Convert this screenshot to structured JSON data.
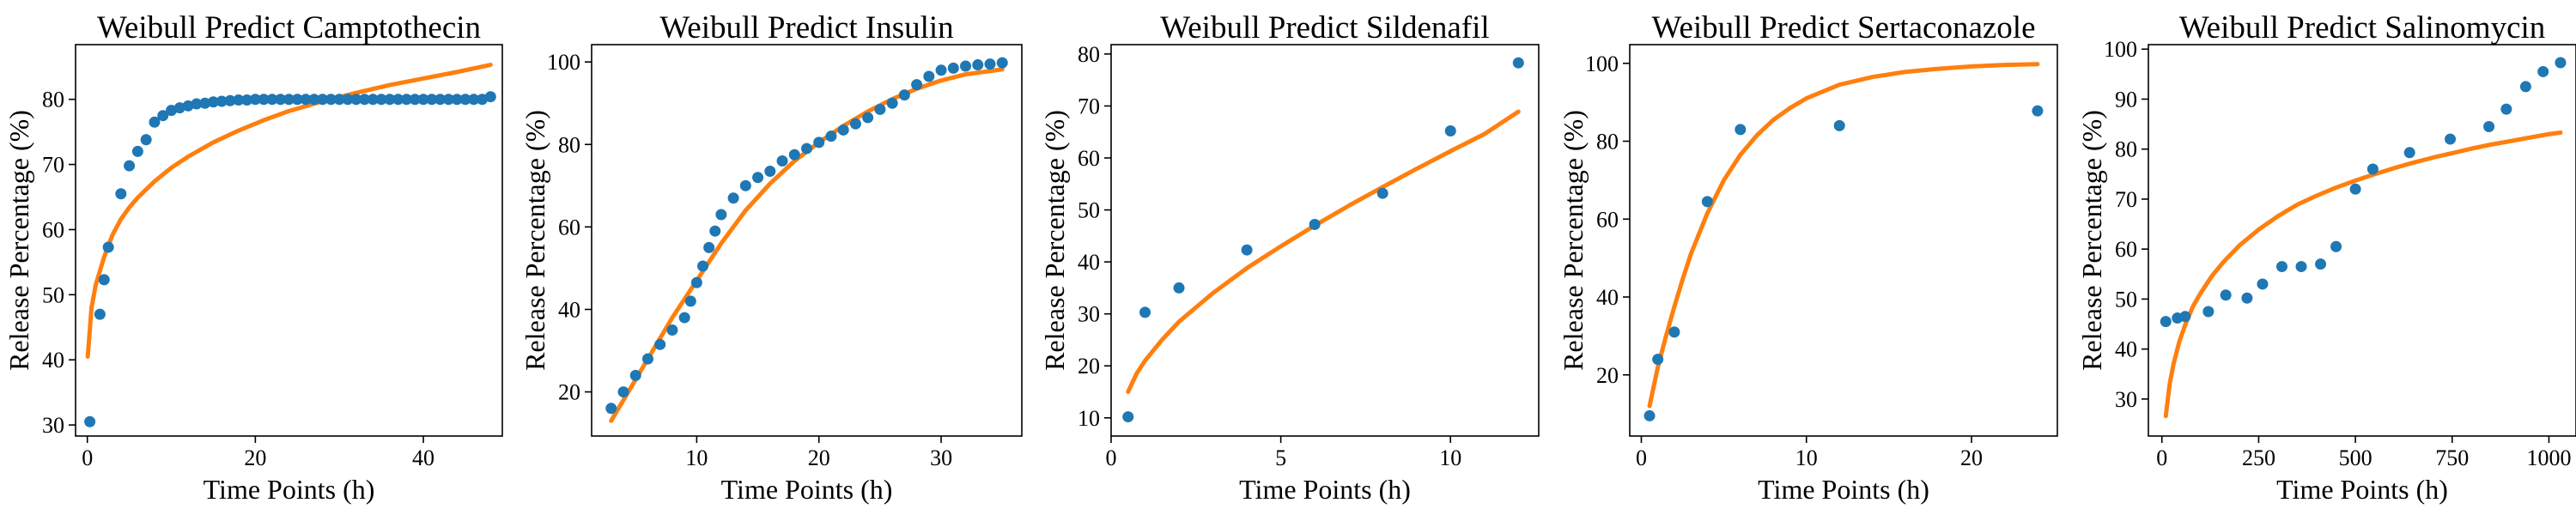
{
  "colors": {
    "points": "#1f77b4",
    "fit": "#ff7f0e",
    "axes": "#000000"
  },
  "chart_data": [
    {
      "type": "scatter",
      "title": "Weibull Predict Camptothecin",
      "xlabel": "Time Points (h)",
      "ylabel": "Release Percentage (%)",
      "xlim": [
        -1.4,
        49.4
      ],
      "ylim": [
        28.3,
        88.4
      ],
      "xticks": [
        0,
        20,
        40
      ],
      "yticks": [
        30,
        40,
        50,
        60,
        70,
        80
      ],
      "grid": false,
      "legend": "none",
      "series": [
        {
          "kind": "points",
          "x": [
            0.3,
            1.5,
            2,
            2.5,
            4,
            5,
            6,
            7,
            8,
            9,
            10,
            11,
            12,
            13,
            14,
            15,
            16,
            17,
            18,
            19,
            20,
            21,
            22,
            23,
            24,
            25,
            26,
            27,
            28,
            29,
            30,
            31,
            32,
            33,
            34,
            35,
            36,
            37,
            38,
            39,
            40,
            41,
            42,
            43,
            44,
            45,
            46,
            47,
            48
          ],
          "y": [
            30.5,
            47,
            52.3,
            57.3,
            65.5,
            69.8,
            72,
            73.8,
            76.5,
            77.5,
            78.3,
            78.7,
            79,
            79.3,
            79.4,
            79.6,
            79.7,
            79.8,
            79.9,
            79.9,
            80,
            80,
            80,
            80,
            80,
            80,
            80,
            80,
            80,
            80,
            80,
            80,
            80,
            80,
            80,
            80,
            80,
            80,
            80,
            80,
            80,
            80,
            80,
            80,
            80,
            80,
            80,
            80,
            80.4
          ]
        },
        {
          "kind": "line",
          "x": [
            0.05,
            0.5,
            1,
            2,
            3,
            4,
            5,
            6,
            8,
            10,
            12,
            15,
            18,
            21,
            24,
            28,
            32,
            36,
            40,
            44,
            48
          ],
          "y": [
            40.5,
            48,
            51.5,
            55.8,
            59.2,
            61.6,
            63.4,
            64.9,
            67.4,
            69.5,
            71.2,
            73.4,
            75.2,
            76.8,
            78.2,
            79.7,
            81,
            82.2,
            83.2,
            84.2,
            85.3
          ]
        }
      ]
    },
    {
      "type": "scatter",
      "title": "Weibull Predict Insulin",
      "xlabel": "Time Points (h)",
      "ylabel": "Release Percentage (%)",
      "xlim": [
        1.4,
        36.6
      ],
      "ylim": [
        9.3,
        104.2
      ],
      "xticks": [
        10,
        20,
        30
      ],
      "yticks": [
        20,
        40,
        60,
        80,
        100
      ],
      "grid": false,
      "legend": "none",
      "series": [
        {
          "kind": "points",
          "x": [
            3,
            4,
            5,
            6,
            7,
            8,
            9,
            9.5,
            10,
            10.5,
            11,
            11.5,
            12,
            13,
            14,
            15,
            16,
            17,
            18,
            19,
            20,
            21,
            22,
            23,
            24,
            25,
            26,
            27,
            28,
            29,
            30,
            31,
            32,
            33,
            34,
            35
          ],
          "y": [
            16,
            20,
            24,
            28,
            31.5,
            35,
            38,
            42,
            46.5,
            50.5,
            55,
            59,
            63,
            67,
            70,
            72,
            73.5,
            76,
            77.5,
            79,
            80.5,
            82,
            83.5,
            85,
            86.5,
            88.5,
            90,
            92,
            94.5,
            96.5,
            98,
            98.5,
            99,
            99.3,
            99.5,
            99.8
          ]
        },
        {
          "kind": "line",
          "x": [
            3,
            4,
            5,
            6,
            8,
            10,
            12,
            14,
            16,
            18,
            20,
            22,
            24,
            26,
            28,
            30,
            32,
            34,
            35
          ],
          "y": [
            13,
            18,
            23,
            28,
            38,
            47,
            56,
            64,
            70.5,
            76,
            80.5,
            84.5,
            88,
            91,
            93.5,
            95.5,
            97,
            97.8,
            98.2
          ]
        }
      ]
    },
    {
      "type": "scatter",
      "title": "Weibull Predict Sildenafil",
      "xlabel": "Time Points (h)",
      "ylabel": "Release Percentage (%)",
      "xlim": [
        0,
        12.6
      ],
      "ylim": [
        6.5,
        81.8
      ],
      "xticks": [
        0,
        5,
        10
      ],
      "yticks": [
        10,
        20,
        30,
        40,
        50,
        60,
        70,
        80
      ],
      "grid": false,
      "legend": "none",
      "series": [
        {
          "kind": "points",
          "x": [
            0.5,
            1,
            2,
            4,
            6,
            8,
            10,
            12
          ],
          "y": [
            10.2,
            30.3,
            35,
            42.3,
            47.2,
            53.2,
            65.2,
            78.3
          ]
        },
        {
          "kind": "line",
          "x": [
            0.5,
            0.75,
            1,
            1.5,
            2,
            3,
            4,
            5,
            6,
            7,
            8,
            9,
            10,
            11,
            12
          ],
          "y": [
            15,
            18.5,
            21,
            25,
            28.5,
            34,
            38.8,
            43,
            47,
            50.8,
            54.4,
            57.9,
            61.3,
            64.6,
            68.9
          ]
        }
      ]
    },
    {
      "type": "scatter",
      "title": "Weibull Predict Sertaconazole",
      "xlabel": "Time Points (h)",
      "ylabel": "Release Percentage (%)",
      "xlim": [
        -0.7,
        25.2
      ],
      "ylim": [
        4.3,
        104.8
      ],
      "xticks": [
        0,
        10,
        20
      ],
      "yticks": [
        20,
        40,
        60,
        80,
        100
      ],
      "grid": false,
      "legend": "none",
      "series": [
        {
          "kind": "points",
          "x": [
            0.5,
            1,
            2,
            4,
            6,
            12,
            24
          ],
          "y": [
            9.5,
            24,
            31,
            64.5,
            83,
            84,
            87.8
          ]
        },
        {
          "kind": "line",
          "x": [
            0.5,
            1,
            1.5,
            2,
            2.5,
            3,
            4,
            5,
            6,
            7,
            8,
            9,
            10,
            12,
            14,
            16,
            18,
            20,
            22,
            24
          ],
          "y": [
            12,
            22,
            30,
            37.5,
            44.5,
            51,
            61.5,
            70,
            76.5,
            81.5,
            85.5,
            88.5,
            91,
            94.5,
            96.5,
            97.8,
            98.6,
            99.2,
            99.6,
            99.8
          ]
        }
      ]
    },
    {
      "type": "scatter",
      "title": "Weibull Predict Salinomycin",
      "xlabel": "Time Points (h)",
      "ylabel": "Release Percentage (%)",
      "xlim": [
        -35,
        1070
      ],
      "ylim": [
        22.6,
        100.9
      ],
      "xticks": [
        0,
        250,
        500,
        750,
        1000
      ],
      "yticks": [
        30,
        40,
        50,
        60,
        70,
        80,
        90,
        100
      ],
      "grid": false,
      "legend": "none",
      "series": [
        {
          "kind": "points",
          "x": [
            10,
            40,
            60,
            120,
            165,
            220,
            260,
            310,
            360,
            410,
            450,
            500,
            545,
            640,
            745,
            845,
            890,
            940,
            985,
            1030
          ],
          "y": [
            45.5,
            46.2,
            46.5,
            47.5,
            50.8,
            50.2,
            53,
            56.5,
            56.5,
            57,
            60.5,
            72,
            76,
            79.3,
            82,
            84.5,
            88,
            92.5,
            95.5,
            97.3
          ]
        },
        {
          "kind": "line",
          "x": [
            10,
            20,
            30,
            45,
            60,
            80,
            100,
            130,
            160,
            200,
            250,
            300,
            350,
            400,
            450,
            500,
            550,
            600,
            650,
            700,
            750,
            800,
            850,
            900,
            950,
            1000,
            1030
          ],
          "y": [
            26.6,
            33,
            37,
            41.5,
            44.8,
            48.5,
            51.2,
            54.7,
            57.5,
            60.7,
            63.9,
            66.6,
            68.9,
            70.7,
            72.3,
            73.7,
            75,
            76.2,
            77.3,
            78.3,
            79.2,
            80.1,
            80.9,
            81.6,
            82.3,
            83,
            83.3
          ]
        }
      ]
    }
  ]
}
